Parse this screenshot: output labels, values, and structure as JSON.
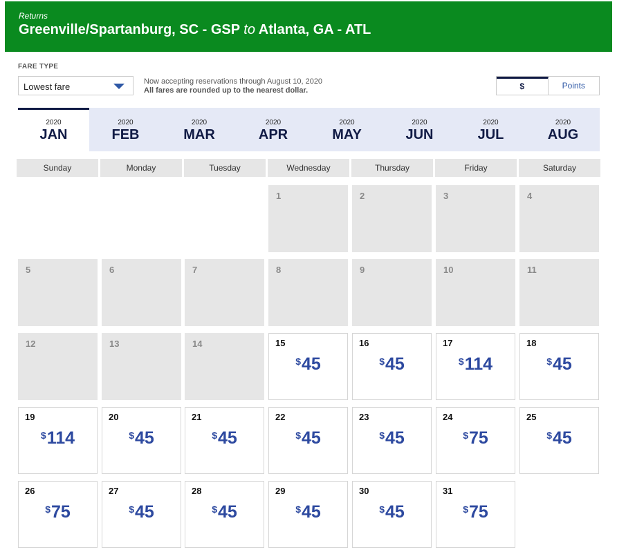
{
  "header": {
    "kicker": "Returns",
    "origin": "Greenville/Spartanburg, SC - GSP",
    "connector": "to",
    "destination": "Atlanta, GA - ATL"
  },
  "fare_type": {
    "label": "FARE TYPE",
    "selected": "Lowest fare"
  },
  "notice": {
    "line1": "Now accepting reservations through August 10, 2020",
    "line2": "All fares are rounded up to the nearest dollar."
  },
  "currency_toggle": {
    "dollars": "$",
    "points": "Points",
    "active": "dollars"
  },
  "months": [
    {
      "year": "2020",
      "name": "JAN",
      "active": true
    },
    {
      "year": "2020",
      "name": "FEB"
    },
    {
      "year": "2020",
      "name": "MAR"
    },
    {
      "year": "2020",
      "name": "APR"
    },
    {
      "year": "2020",
      "name": "MAY"
    },
    {
      "year": "2020",
      "name": "JUN"
    },
    {
      "year": "2020",
      "name": "JUL"
    },
    {
      "year": "2020",
      "name": "AUG"
    }
  ],
  "weekdays": [
    "Sunday",
    "Monday",
    "Tuesday",
    "Wednesday",
    "Thursday",
    "Friday",
    "Saturday"
  ],
  "calendar": {
    "first_weekday_index": 3,
    "currency_symbol": "$",
    "days": [
      {
        "day": "1"
      },
      {
        "day": "2"
      },
      {
        "day": "3"
      },
      {
        "day": "4"
      },
      {
        "day": "5"
      },
      {
        "day": "6"
      },
      {
        "day": "7"
      },
      {
        "day": "8"
      },
      {
        "day": "9"
      },
      {
        "day": "10"
      },
      {
        "day": "11"
      },
      {
        "day": "12"
      },
      {
        "day": "13"
      },
      {
        "day": "14"
      },
      {
        "day": "15",
        "price": "45"
      },
      {
        "day": "16",
        "price": "45"
      },
      {
        "day": "17",
        "price": "114"
      },
      {
        "day": "18",
        "price": "45"
      },
      {
        "day": "19",
        "price": "114"
      },
      {
        "day": "20",
        "price": "45"
      },
      {
        "day": "21",
        "price": "45"
      },
      {
        "day": "22",
        "price": "45"
      },
      {
        "day": "23",
        "price": "45"
      },
      {
        "day": "24",
        "price": "75"
      },
      {
        "day": "25",
        "price": "45"
      },
      {
        "day": "26",
        "price": "75"
      },
      {
        "day": "27",
        "price": "45"
      },
      {
        "day": "28",
        "price": "45"
      },
      {
        "day": "29",
        "price": "45"
      },
      {
        "day": "30",
        "price": "45"
      },
      {
        "day": "31",
        "price": "75"
      }
    ]
  }
}
